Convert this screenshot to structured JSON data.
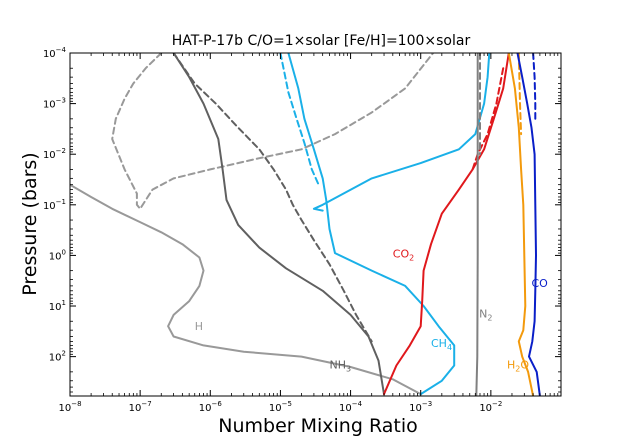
{
  "chart_data": {
    "type": "line",
    "title": "HAT-P-17b   C/O=1×solar   [Fe/H]=100×solar",
    "xlabel": "Number Mixing Ratio",
    "ylabel": "Pressure (bars)",
    "xscale": "log",
    "yscale": "log",
    "xlim": [
      1e-08,
      0.1
    ],
    "ylim_top_to_bottom": [
      0.0001,
      600
    ],
    "x_ticks": [
      {
        "exp": "−8"
      },
      {
        "exp": "−7"
      },
      {
        "exp": "−6"
      },
      {
        "exp": "−5"
      },
      {
        "exp": "−4"
      },
      {
        "exp": "−3"
      },
      {
        "exp": "−2"
      }
    ],
    "y_ticks": [
      {
        "exp": "−4"
      },
      {
        "exp": "−3"
      },
      {
        "exp": "−2"
      },
      {
        "exp": "−1"
      },
      {
        "exp": "0"
      },
      {
        "exp": "1"
      },
      {
        "exp": "2"
      }
    ],
    "series": [
      {
        "name": "H",
        "color": "#999999",
        "style": "solid",
        "points": [
          [
            1e-08,
            0.04
          ],
          [
            2e-08,
            0.07
          ],
          [
            4e-08,
            0.12
          ],
          [
            1e-07,
            0.22
          ],
          [
            2e-07,
            0.35
          ],
          [
            4e-07,
            0.6
          ],
          [
            7e-07,
            1.1
          ],
          [
            8e-07,
            2.0
          ],
          [
            7e-07,
            4
          ],
          [
            5e-07,
            8
          ],
          [
            3e-07,
            15
          ],
          [
            2.5e-07,
            25
          ],
          [
            3e-07,
            40
          ],
          [
            8e-07,
            60
          ],
          [
            3e-06,
            80
          ],
          [
            2e-05,
            100
          ],
          [
            0.0001,
            160
          ],
          [
            0.0004,
            280
          ],
          [
            0.001,
            550
          ]
        ]
      },
      {
        "name": "H (dashed)",
        "color": "#999999",
        "style": "dashed",
        "points": [
          [
            2e-07,
            0.0001
          ],
          [
            1.2e-07,
            0.0002
          ],
          [
            8e-08,
            0.0004
          ],
          [
            6e-08,
            0.0008
          ],
          [
            4.5e-08,
            0.002
          ],
          [
            4e-08,
            0.005
          ],
          [
            6e-08,
            0.02
          ],
          [
            9e-08,
            0.06
          ],
          [
            9e-08,
            0.1
          ],
          [
            1e-07,
            0.12
          ],
          [
            1.5e-07,
            0.05
          ],
          [
            3e-07,
            0.03
          ],
          [
            1e-06,
            0.02
          ],
          [
            5e-06,
            0.012
          ],
          [
            2e-05,
            0.008
          ],
          [
            6e-05,
            0.004
          ],
          [
            0.0002,
            0.0015
          ],
          [
            0.0006,
            0.0005
          ],
          [
            0.0015,
            0.0001
          ]
        ]
      },
      {
        "name": "NH3",
        "color": "#606060",
        "style": "solid",
        "points": [
          [
            3e-07,
            0.0001
          ],
          [
            5e-07,
            0.0003
          ],
          [
            8e-07,
            0.001
          ],
          [
            1.3e-06,
            0.005
          ],
          [
            1.5e-06,
            0.02
          ],
          [
            1.7e-06,
            0.08
          ],
          [
            2.5e-06,
            0.25
          ],
          [
            5e-06,
            0.7
          ],
          [
            1.2e-05,
            1.8
          ],
          [
            4e-05,
            5
          ],
          [
            0.0001,
            15
          ],
          [
            0.00018,
            40
          ],
          [
            0.00025,
            120
          ],
          [
            0.0003,
            550
          ]
        ]
      },
      {
        "name": "NH3 (dashed)",
        "color": "#606060",
        "style": "dashed",
        "points": [
          [
            3e-07,
            0.0001
          ],
          [
            6e-07,
            0.0004
          ],
          [
            1.2e-06,
            0.001
          ],
          [
            2.5e-06,
            0.003
          ],
          [
            5e-06,
            0.008
          ],
          [
            8e-06,
            0.02
          ],
          [
            1.2e-05,
            0.05
          ],
          [
            1.5e-05,
            0.1
          ],
          [
            2e-05,
            0.2
          ],
          [
            3e-05,
            0.5
          ],
          [
            5e-05,
            1.5
          ],
          [
            8e-05,
            5
          ],
          [
            0.00012,
            15
          ],
          [
            0.0002,
            50
          ]
        ]
      },
      {
        "name": "CH4",
        "color": "#1ab0e8",
        "style": "solid",
        "points": [
          [
            1.3e-05,
            0.0001
          ],
          [
            1.8e-05,
            0.0005
          ],
          [
            2.2e-05,
            0.002
          ],
          [
            3e-05,
            0.008
          ],
          [
            4e-05,
            0.03
          ],
          [
            4.5e-05,
            0.08
          ],
          [
            5e-05,
            0.3
          ],
          [
            6e-05,
            0.9
          ],
          [
            0.0002,
            2
          ],
          [
            0.0006,
            4
          ],
          [
            0.0011,
            10
          ],
          [
            0.0018,
            25
          ],
          [
            0.003,
            60
          ],
          [
            0.003,
            150
          ],
          [
            0.002,
            300
          ],
          [
            0.001,
            550
          ]
        ]
      },
      {
        "name": "CH4 (dashed)",
        "color": "#1ab0e8",
        "style": "dashed",
        "points": [
          [
            1e-05,
            0.0001
          ],
          [
            1.3e-05,
            0.0006
          ],
          [
            1.7e-05,
            0.002
          ],
          [
            2.2e-05,
            0.006
          ],
          [
            2.8e-05,
            0.02
          ],
          [
            3.5e-05,
            0.04
          ]
        ]
      },
      {
        "name": "CH4 (upper)",
        "color": "#1ab0e8",
        "style": "solid",
        "points": [
          [
            4e-05,
            0.13
          ],
          [
            3e-05,
            0.12
          ],
          [
            4e-05,
            0.1
          ],
          [
            0.0002,
            0.03
          ],
          [
            0.001,
            0.015
          ],
          [
            0.0035,
            0.008
          ],
          [
            0.006,
            0.004
          ],
          [
            0.008,
            0.001
          ],
          [
            0.009,
            0.0003
          ],
          [
            0.0095,
            0.0001
          ]
        ]
      },
      {
        "name": "CO2",
        "color": "#e0181c",
        "style": "solid",
        "points": [
          [
            0.018,
            0.0001
          ],
          [
            0.015,
            0.0005
          ],
          [
            0.011,
            0.002
          ],
          [
            0.008,
            0.008
          ],
          [
            0.0055,
            0.02
          ],
          [
            0.0035,
            0.05
          ],
          [
            0.002,
            0.15
          ],
          [
            0.0014,
            0.6
          ],
          [
            0.0011,
            2
          ],
          [
            0.00105,
            8
          ],
          [
            0.001,
            25
          ],
          [
            0.0007,
            60
          ],
          [
            0.00045,
            150
          ],
          [
            0.0003,
            550
          ]
        ]
      },
      {
        "name": "CO2 (dashed)",
        "color": "#e0181c",
        "style": "dashed",
        "points": [
          [
            0.015,
            0.0002
          ],
          [
            0.012,
            0.001
          ],
          [
            0.009,
            0.004
          ],
          [
            0.0065,
            0.01
          ],
          [
            0.0055,
            0.02
          ]
        ]
      },
      {
        "name": "N2",
        "color": "#808080",
        "style": "solid",
        "points": [
          [
            0.0065,
            0.0001
          ],
          [
            0.0065,
            0.01
          ],
          [
            0.0065,
            1
          ],
          [
            0.0064,
            100
          ],
          [
            0.0062,
            600
          ]
        ]
      },
      {
        "name": "N2 (dashed)",
        "color": "#808080",
        "style": "dashed",
        "points": [
          [
            0.007,
            0.0001
          ],
          [
            0.007,
            0.001
          ],
          [
            0.007,
            0.01
          ]
        ]
      },
      {
        "name": "H2O",
        "color": "#f39a0c",
        "style": "solid",
        "points": [
          [
            0.018,
            0.0001
          ],
          [
            0.022,
            0.0005
          ],
          [
            0.025,
            0.003
          ],
          [
            0.027,
            0.02
          ],
          [
            0.029,
            0.1
          ],
          [
            0.03,
            1
          ],
          [
            0.031,
            10
          ],
          [
            0.029,
            30
          ],
          [
            0.025,
            50
          ],
          [
            0.028,
            100
          ],
          [
            0.034,
            200
          ],
          [
            0.04,
            600
          ]
        ]
      },
      {
        "name": "H2O (dashed)",
        "color": "#f39a0c",
        "style": "dashed",
        "points": [
          [
            0.025,
            0.0001
          ],
          [
            0.026,
            0.001
          ],
          [
            0.027,
            0.004
          ]
        ]
      },
      {
        "name": "CO",
        "color": "#0a1fc8",
        "style": "solid",
        "points": [
          [
            0.024,
            0.0001
          ],
          [
            0.028,
            0.0003
          ],
          [
            0.033,
            0.001
          ],
          [
            0.038,
            0.003
          ],
          [
            0.042,
            0.01
          ],
          [
            0.043,
            0.1
          ],
          [
            0.044,
            1
          ],
          [
            0.043,
            5
          ],
          [
            0.042,
            20
          ],
          [
            0.039,
            50
          ],
          [
            0.035,
            100
          ],
          [
            0.045,
            200
          ],
          [
            0.05,
            600
          ]
        ]
      },
      {
        "name": "CO (dashed)",
        "color": "#0a1fc8",
        "style": "dashed",
        "points": [
          [
            0.04,
            0.0001
          ],
          [
            0.042,
            0.0003
          ],
          [
            0.043,
            0.001
          ],
          [
            0.043,
            0.002
          ]
        ]
      }
    ],
    "annotations": [
      {
        "name": "label-H",
        "base": "H",
        "sub": "",
        "after": "",
        "color": "#999999",
        "x": 6e-07,
        "p": 30
      },
      {
        "name": "label-NH3",
        "base": "NH",
        "sub": "3",
        "after": "",
        "color": "#606060",
        "x": 5e-05,
        "p": 170
      },
      {
        "name": "label-CH4",
        "base": "CH",
        "sub": "4",
        "after": "",
        "color": "#1ab0e8",
        "x": 0.0014,
        "p": 65
      },
      {
        "name": "label-CO2",
        "base": "CO",
        "sub": "2",
        "after": "",
        "color": "#e0181c",
        "x": 0.0004,
        "p": 1.1
      },
      {
        "name": "label-N2",
        "base": "N",
        "sub": "2",
        "after": "",
        "color": "#808080",
        "x": 0.0068,
        "p": 17
      },
      {
        "name": "label-H2O",
        "base": "H",
        "sub": "2",
        "after": "O",
        "color": "#f39a0c",
        "x": 0.017,
        "p": 170
      },
      {
        "name": "label-CO",
        "base": "CO",
        "sub": "",
        "after": "",
        "color": "#0a1fc8",
        "x": 0.038,
        "p": 4.2
      }
    ]
  }
}
